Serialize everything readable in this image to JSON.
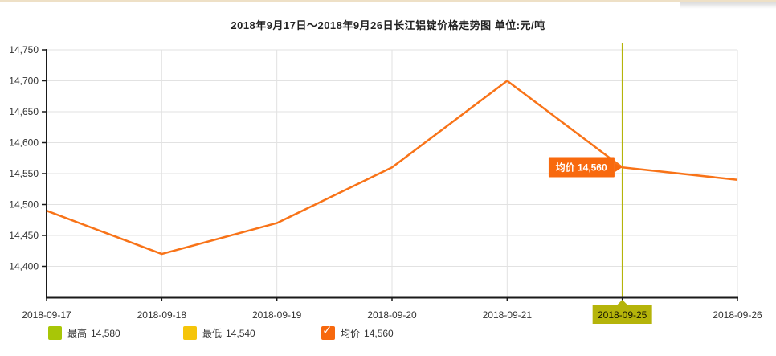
{
  "title": "2018年9月17日～2018年9月26日长江铝锭价格走势图 单位:元/吨",
  "tooltip": {
    "label": "均价",
    "value": "14,560"
  },
  "highlight_date": "2018-09-25",
  "legend": [
    {
      "name": "最高",
      "value": "14,580",
      "color": "#a8c607",
      "checked": false
    },
    {
      "name": "最低",
      "value": "14,540",
      "color": "#f5c50a",
      "checked": false
    },
    {
      "name": "均价",
      "value": "14,560",
      "color": "#f7680d",
      "checked": true
    }
  ],
  "colors": {
    "line": "#f87318",
    "grid": "#e2e2e2",
    "axis": "#1a1a1a",
    "highlight": "#b5b40a",
    "tooltip_bg": "#f8690e",
    "tick_text": "#333333"
  },
  "chart_data": {
    "type": "line",
    "title": "2018年9月17日～2018年9月26日长江铝锭价格走势图",
    "unit": "元/吨",
    "x": [
      "2018-09-17",
      "2018-09-18",
      "2018-09-19",
      "2018-09-20",
      "2018-09-21",
      "2018-09-25",
      "2018-09-26"
    ],
    "series": [
      {
        "name": "均价",
        "values": [
          14490,
          14420,
          14470,
          14560,
          14700,
          14560,
          14540
        ]
      }
    ],
    "ylim": [
      14350,
      14750
    ],
    "yticks": [
      14400,
      14450,
      14500,
      14550,
      14600,
      14650,
      14700,
      14750
    ],
    "highlight_x": "2018-09-25",
    "grid": true,
    "legend_position": "bottom"
  }
}
